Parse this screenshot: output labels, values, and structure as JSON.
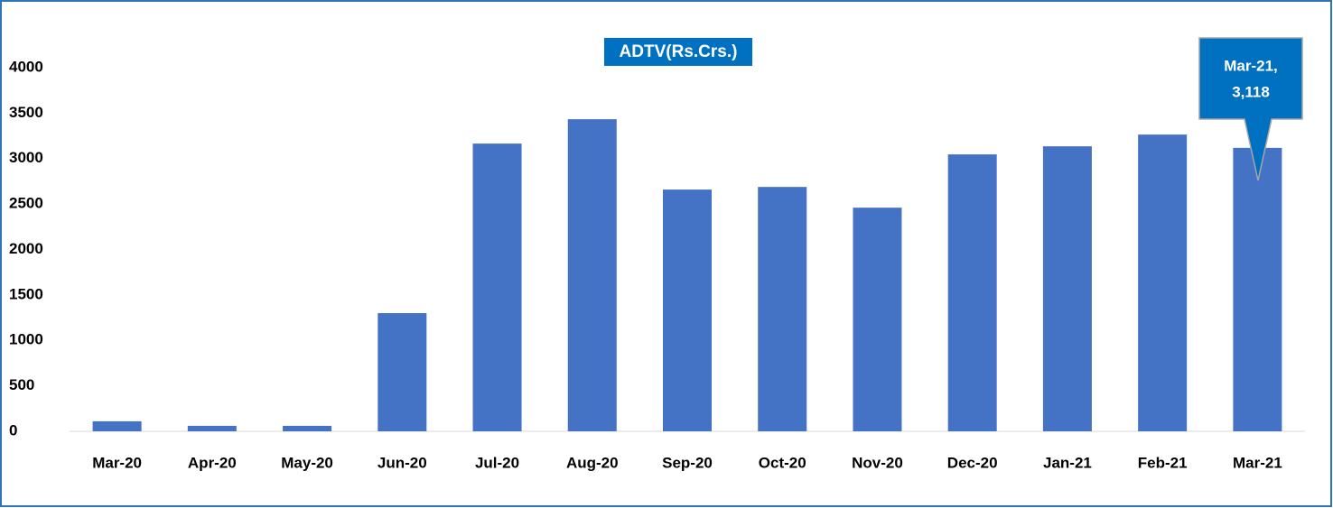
{
  "chart_data": {
    "type": "bar",
    "title": "ADTV(Rs.Crs.)",
    "categories": [
      "Mar-20",
      "Apr-20",
      "May-20",
      "Jun-20",
      "Jul-20",
      "Aug-20",
      "Sep-20",
      "Oct-20",
      "Nov-20",
      "Dec-20",
      "Jan-21",
      "Feb-21",
      "Mar-21"
    ],
    "values": [
      110,
      60,
      60,
      1300,
      3165,
      3433,
      2659,
      2688,
      2460,
      3046,
      3135,
      3264,
      3118
    ],
    "color": "#4472c4",
    "ylim": [
      0,
      4000
    ],
    "yticks": [
      0,
      500,
      1000,
      1500,
      2000,
      2500,
      3000,
      3500,
      4000
    ],
    "grid": false,
    "annotation": [
      "Mar-21,",
      "3,118"
    ]
  }
}
